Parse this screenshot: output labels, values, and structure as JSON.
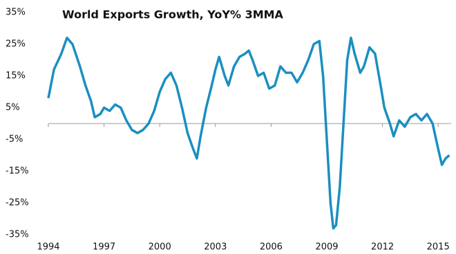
{
  "chart_data": {
    "type": "line",
    "title": "World Exports Growth, YoY% 3MMA",
    "x": [
      1994.0,
      1994.3,
      1994.7,
      1995.0,
      1995.3,
      1995.7,
      1996.0,
      1996.3,
      1996.5,
      1996.8,
      1997.0,
      1997.3,
      1997.6,
      1997.9,
      1998.2,
      1998.5,
      1998.8,
      1999.1,
      1999.4,
      1999.7,
      2000.0,
      2000.3,
      2000.6,
      2000.9,
      2001.2,
      2001.5,
      2001.8,
      2002.0,
      2002.2,
      2002.5,
      2002.8,
      2003.0,
      2003.2,
      2003.5,
      2003.7,
      2004.0,
      2004.3,
      2004.6,
      2004.8,
      2005.0,
      2005.3,
      2005.6,
      2005.9,
      2006.2,
      2006.5,
      2006.8,
      2007.1,
      2007.4,
      2007.7,
      2008.0,
      2008.3,
      2008.6,
      2008.8,
      2009.0,
      2009.2,
      2009.35,
      2009.5,
      2009.7,
      2009.9,
      2010.1,
      2010.3,
      2010.5,
      2010.8,
      2011.0,
      2011.3,
      2011.6,
      2011.9,
      2012.1,
      2012.4,
      2012.6,
      2012.9,
      2013.2,
      2013.5,
      2013.8,
      2014.1,
      2014.4,
      2014.7,
      2015.0,
      2015.2,
      2015.4,
      2015.6
    ],
    "series": [
      {
        "name": "World Exports Growth",
        "color": "#1a8fc0",
        "values": [
          8,
          17,
          22,
          27,
          25,
          18,
          12,
          7,
          2,
          3,
          5,
          4,
          6,
          5,
          1,
          -2,
          -3,
          -2,
          0,
          4,
          10,
          14,
          16,
          12,
          5,
          -3,
          -8,
          -11,
          -4,
          5,
          12,
          17,
          21,
          15,
          12,
          18,
          21,
          22,
          23,
          20,
          15,
          16,
          11,
          12,
          18,
          16,
          16,
          13,
          16,
          20,
          25,
          26,
          15,
          -5,
          -25,
          -33,
          -32,
          -20,
          0,
          20,
          27,
          22,
          16,
          18,
          24,
          22,
          12,
          5,
          0,
          -4,
          1,
          -1,
          2,
          3,
          1,
          3,
          0,
          -8,
          -13,
          -11,
          -10
        ]
      }
    ],
    "xlim": [
      1994,
      2015.7
    ],
    "xticks": [
      1994,
      1997,
      2000,
      2003,
      2006,
      2009,
      2012,
      2015
    ],
    "ylim": [
      -35,
      35
    ],
    "yticks": [
      {
        "value": 35,
        "label": "35%"
      },
      {
        "value": 25,
        "label": "25%"
      },
      {
        "value": 15,
        "label": "15%"
      },
      {
        "value": 5,
        "label": "5%"
      },
      {
        "value": -5,
        "label": "-5%"
      },
      {
        "value": -15,
        "label": "-15%"
      },
      {
        "value": -25,
        "label": "-25%"
      },
      {
        "value": -35,
        "label": "-35%"
      }
    ]
  }
}
